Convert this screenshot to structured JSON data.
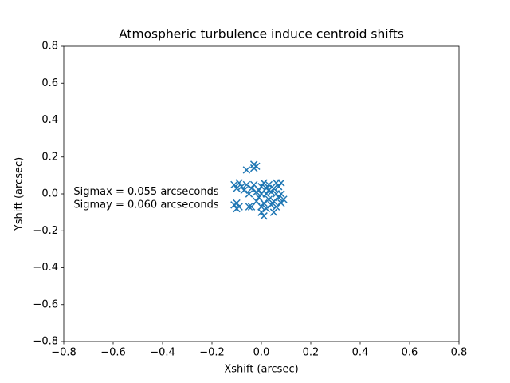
{
  "chart_data": {
    "type": "scatter",
    "title": "Atmospheric turbulence induce centroid shifts",
    "xlabel": "Xshift (arcsec)",
    "ylabel": "Yshift (arcsec)",
    "series": [
      {
        "color": "#1f77b4",
        "marker": "x",
        "x": [
          -0.03,
          -0.03,
          -0.02,
          -0.06,
          -0.11,
          -0.1,
          -0.11,
          -0.1,
          -0.09,
          -0.1,
          -0.08,
          -0.07,
          -0.06,
          -0.05,
          -0.04,
          -0.04,
          -0.03,
          -0.02,
          -0.01,
          0.0,
          0.0,
          0.01,
          0.0,
          0.01,
          0.02,
          0.02,
          0.03,
          0.03,
          0.04,
          0.04,
          0.05,
          0.05,
          0.06,
          0.06,
          0.07,
          0.08,
          0.08,
          0.09,
          0.08,
          0.07,
          0.01,
          -0.02,
          0.0,
          0.02,
          -0.01,
          0.03,
          0.05,
          0.06,
          -0.09,
          -0.05
        ],
        "values": [
          0.16,
          0.14,
          0.15,
          0.13,
          0.05,
          0.03,
          -0.06,
          -0.08,
          -0.07,
          -0.05,
          0.04,
          0.02,
          0.05,
          0.0,
          0.03,
          -0.07,
          0.05,
          0.01,
          -0.02,
          0.0,
          0.04,
          -0.05,
          -0.1,
          -0.12,
          -0.08,
          0.03,
          0.05,
          -0.03,
          0.01,
          -0.06,
          0.03,
          -0.1,
          -0.07,
          0.06,
          0.04,
          0.06,
          0.0,
          -0.03,
          -0.05,
          -0.02,
          0.06,
          -0.04,
          -0.07,
          0.0,
          0.02,
          0.02,
          -0.04,
          0.0,
          0.06,
          -0.07
        ]
      }
    ],
    "annotations": [
      {
        "text": "Sigmax = 0.055 arcseconds",
        "x": -0.76,
        "y": 0.01
      },
      {
        "text": "Sigmay = 0.060 arcseconds",
        "x": -0.76,
        "y": -0.06
      }
    ],
    "xlim": [
      -0.8,
      0.8
    ],
    "ylim": [
      -0.8,
      0.8
    ],
    "xticks": [
      {
        "value": -0.8,
        "label": "−0.8"
      },
      {
        "value": -0.6,
        "label": "−0.6"
      },
      {
        "value": -0.4,
        "label": "−0.4"
      },
      {
        "value": -0.2,
        "label": "−0.2"
      },
      {
        "value": 0,
        "label": "0.0"
      },
      0.2,
      0.4,
      0.6,
      0.8
    ],
    "yticks": [
      {
        "value": -0.8,
        "label": "−0.8"
      },
      {
        "value": -0.6,
        "label": "−0.6"
      },
      {
        "value": -0.4,
        "label": "−0.4"
      },
      {
        "value": -0.2,
        "label": "−0.2"
      },
      {
        "value": 0,
        "label": "0.0"
      },
      0.2,
      0.4,
      0.6,
      0.8
    ],
    "grid": false
  }
}
